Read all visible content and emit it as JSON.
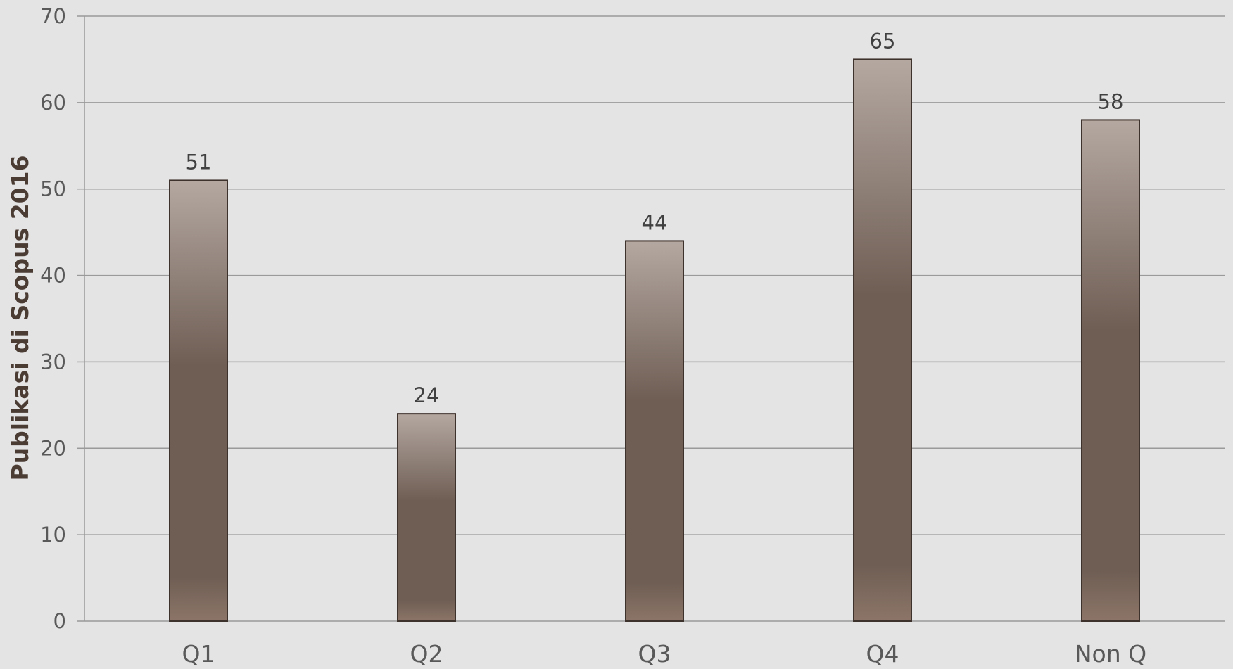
{
  "chart_data": {
    "type": "bar",
    "title": "",
    "xlabel": "",
    "ylabel": "Publikasi di Scopus 2016",
    "categories": [
      "Q1",
      "Q2",
      "Q3",
      "Q4",
      "Non Q"
    ],
    "values": [
      51,
      24,
      44,
      65,
      58
    ],
    "ylim": [
      0,
      70
    ],
    "yticks": [
      0,
      10,
      20,
      30,
      40,
      50,
      60,
      70
    ],
    "grid": true,
    "legend": "none",
    "data_labels": true,
    "colors": {
      "background": "#e4e4e4",
      "bar_top": "#b4a8a1",
      "bar_mid": "#6f5e54",
      "bar_bottom": "#8c7568",
      "bar_border": "#3e322c",
      "gridline": "#9a9a9a",
      "text": "#595959",
      "axis_title": "#4a3b33"
    }
  }
}
